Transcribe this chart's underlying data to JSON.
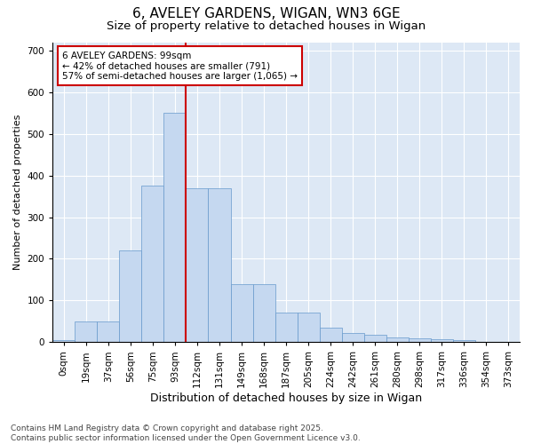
{
  "title": "6, AVELEY GARDENS, WIGAN, WN3 6GE",
  "subtitle": "Size of property relative to detached houses in Wigan",
  "xlabel": "Distribution of detached houses by size in Wigan",
  "ylabel": "Number of detached properties",
  "bin_labels": [
    "0sqm",
    "19sqm",
    "37sqm",
    "56sqm",
    "75sqm",
    "93sqm",
    "112sqm",
    "131sqm",
    "149sqm",
    "168sqm",
    "187sqm",
    "205sqm",
    "224sqm",
    "242sqm",
    "261sqm",
    "280sqm",
    "298sqm",
    "317sqm",
    "336sqm",
    "354sqm",
    "373sqm"
  ],
  "bar_values": [
    5,
    50,
    50,
    220,
    375,
    550,
    370,
    370,
    140,
    140,
    70,
    70,
    35,
    22,
    18,
    11,
    10,
    7,
    4,
    1,
    1
  ],
  "bar_color": "#c5d8f0",
  "bar_edge_color": "#6699cc",
  "vline_color": "#cc0000",
  "annotation_text": "6 AVELEY GARDENS: 99sqm\n← 42% of detached houses are smaller (791)\n57% of semi-detached houses are larger (1,065) →",
  "annotation_box_facecolor": "#ffffff",
  "annotation_box_edgecolor": "#cc0000",
  "ylim": [
    0,
    720
  ],
  "yticks": [
    0,
    100,
    200,
    300,
    400,
    500,
    600,
    700
  ],
  "bg_color": "#dde8f5",
  "grid_color": "#ffffff",
  "footer_text": "Contains HM Land Registry data © Crown copyright and database right 2025.\nContains public sector information licensed under the Open Government Licence v3.0.",
  "title_fontsize": 11,
  "subtitle_fontsize": 9.5,
  "xlabel_fontsize": 9,
  "ylabel_fontsize": 8,
  "tick_fontsize": 7.5,
  "footer_fontsize": 6.5
}
